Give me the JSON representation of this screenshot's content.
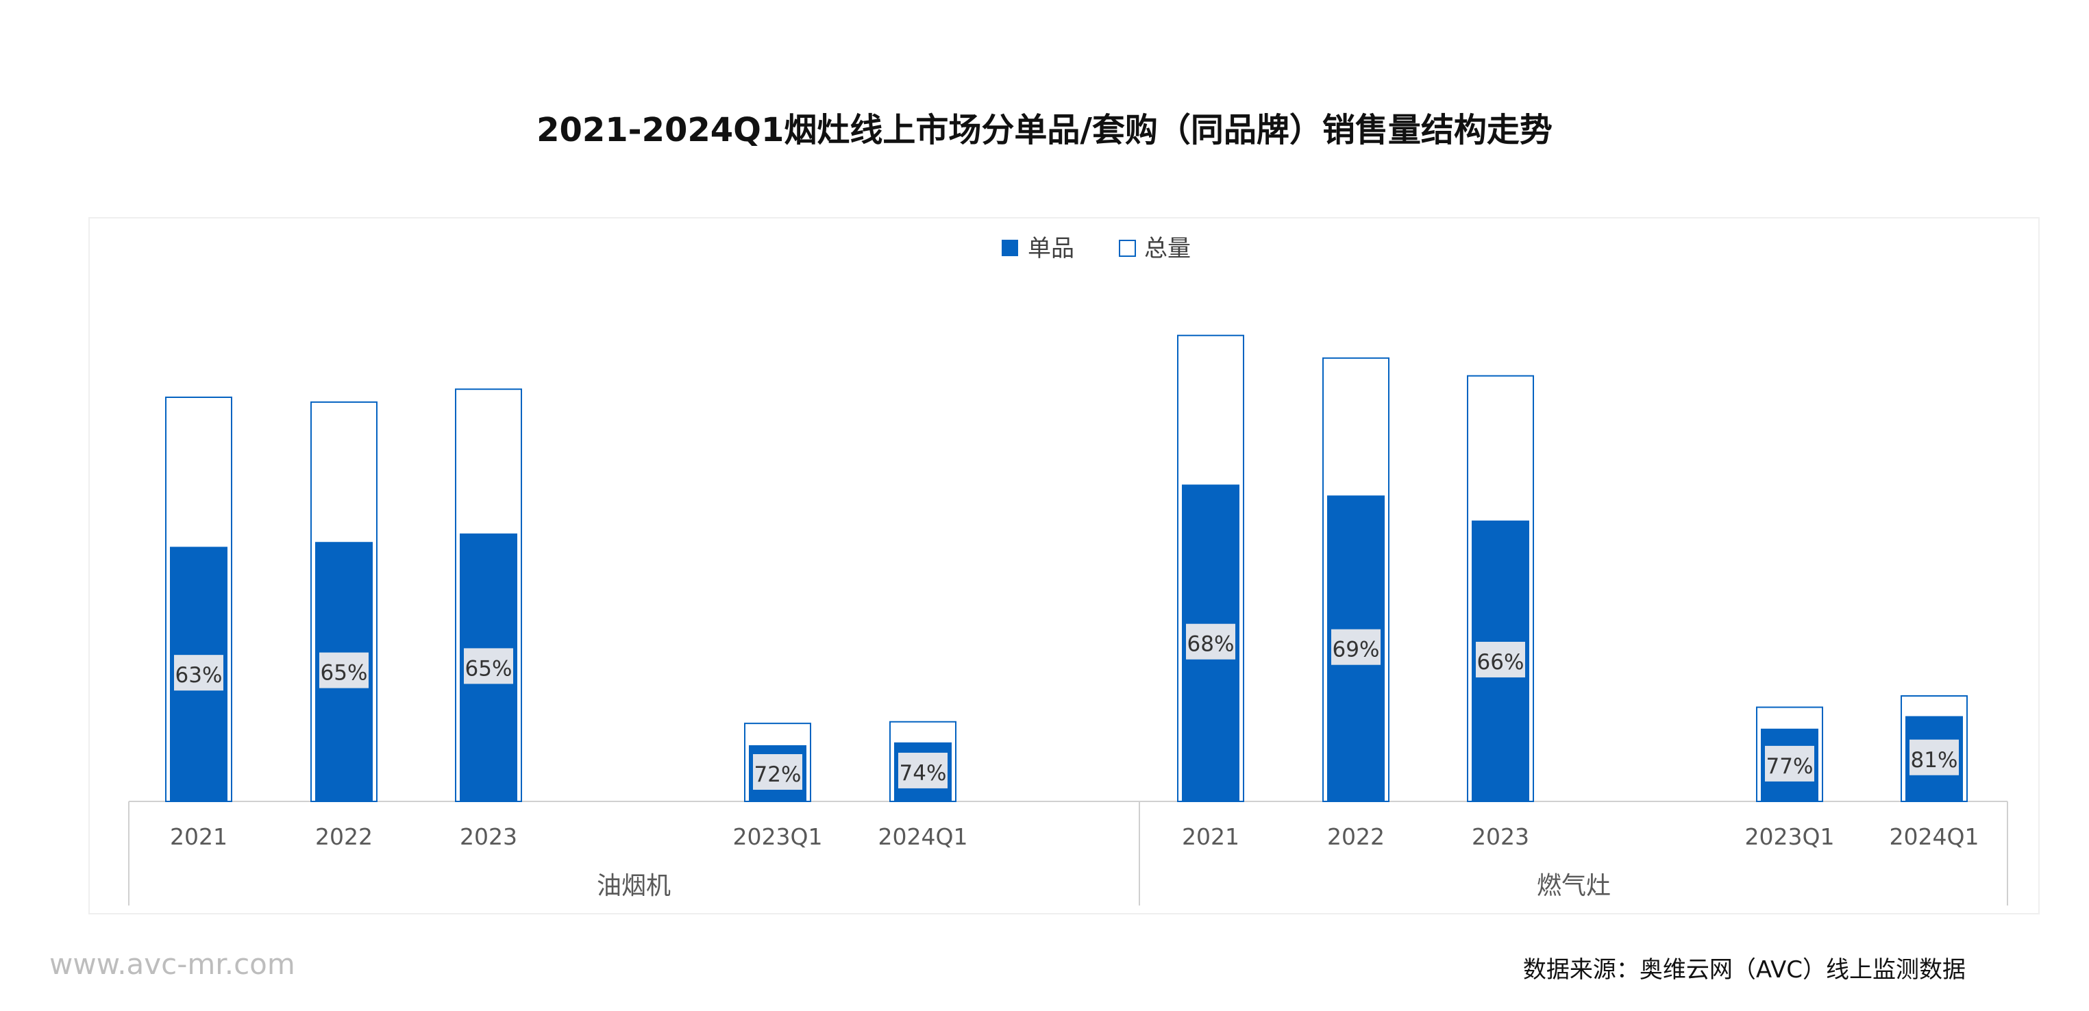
{
  "page": {
    "title": "2021-2024Q1烟灶线上市场分单品/套购（同品牌）销售量结构走势",
    "watermark": "www.avc-mr.com",
    "source": "数据来源：奥维云网（AVC）线上监测数据"
  },
  "chart_data": {
    "type": "bar",
    "title": "2021-2024Q1烟灶线上市场分单品/套购（同品牌）销售量结构走势",
    "legend": {
      "placement": "top-center",
      "entries": [
        {
          "name": "单品",
          "style": "filled"
        },
        {
          "name": "总量",
          "style": "outline"
        }
      ]
    },
    "colors": {
      "single": "#0563c1",
      "total_outline": "#0563c1",
      "label_box": "#dfe3ea",
      "axis": "#d0d0d0"
    },
    "grid": false,
    "groups": [
      {
        "name": "油烟机",
        "categories": [
          "2021",
          "2022",
          "2023",
          "2023Q1",
          "2024Q1"
        ],
        "total": [
          100,
          98.8,
          102,
          19.3,
          19.7
        ],
        "single": [
          63,
          64.2,
          66.3,
          13.9,
          14.6
        ],
        "labels": [
          "63%",
          "65%",
          "65%",
          "72%",
          "74%"
        ]
      },
      {
        "name": "燃气灶",
        "categories": [
          "2021",
          "2022",
          "2023",
          "2023Q1",
          "2024Q1"
        ],
        "total": [
          115.3,
          109.7,
          105.3,
          23.3,
          26.1
        ],
        "single": [
          78.4,
          75.7,
          69.5,
          18,
          21.1
        ],
        "labels": [
          "68%",
          "69%",
          "66%",
          "77%",
          "81%"
        ]
      }
    ]
  }
}
